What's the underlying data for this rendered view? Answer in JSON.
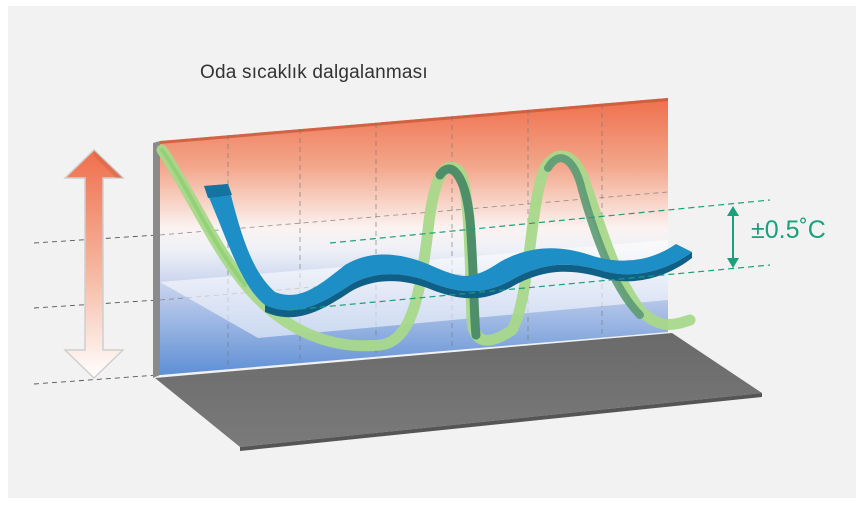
{
  "diagram": {
    "title": "Oda sıcaklık dalgalanması",
    "tolerance_label": "±0.5˚C"
  },
  "colors": {
    "warm": "#ef7a55",
    "cool": "#5b8fd6",
    "floor": "#6e6e6e",
    "blue_ribbon": "#1e8fc6",
    "green_ribbon": "#a8d88a",
    "green_dark": "#4e8f6a",
    "tolerance": "#1aa07a",
    "background": "#f2f2f2"
  },
  "icons": [
    "double-arrow-icon",
    "tolerance-arrow-icon"
  ]
}
